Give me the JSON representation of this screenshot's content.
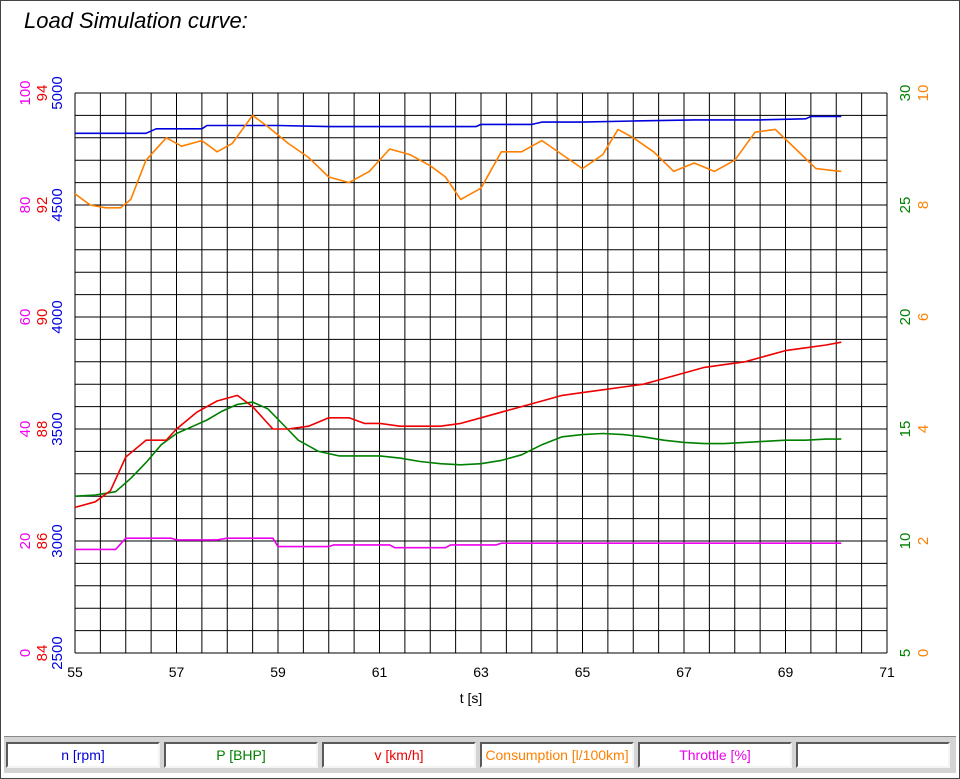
{
  "window": {
    "title": "Load Simulation curve:"
  },
  "legend": [
    {
      "label": "n [rpm]",
      "color": "#0000dd"
    },
    {
      "label": "P [BHP]",
      "color": "#008000"
    },
    {
      "label": "v [km/h]",
      "color": "#ee0000"
    },
    {
      "label": "Consumption [l/100km]",
      "color": "#ff8000"
    },
    {
      "label": "Throttle [%]",
      "color": "#ee00ee"
    },
    {
      "label": ""
    }
  ],
  "chart_data": {
    "type": "line",
    "title": "Load Simulation curve:",
    "xlabel": "t [s]",
    "xlim": [
      55,
      71
    ],
    "x_ticks": [
      55,
      57,
      59,
      61,
      63,
      65,
      67,
      69,
      71
    ],
    "grid": true,
    "legend_placement": "bottom",
    "axes": [
      {
        "id": "rpm",
        "side": "left",
        "color": "#0000dd",
        "min": 2500,
        "max": 5000,
        "ticks": [
          "2500",
          "3000",
          "3500",
          "4000",
          "4500",
          "5000"
        ]
      },
      {
        "id": "v",
        "side": "left",
        "color": "#ee0000",
        "min": 84,
        "max": 94,
        "ticks": [
          "84",
          "86",
          "88",
          "90",
          "92",
          "94"
        ]
      },
      {
        "id": "throttle",
        "side": "left",
        "color": "#ee00ee",
        "min": 0,
        "max": 100,
        "ticks": [
          "0",
          "20",
          "40",
          "60",
          "80",
          "100"
        ]
      },
      {
        "id": "power",
        "side": "right",
        "color": "#008000",
        "min": 5,
        "max": 30,
        "ticks": [
          "5",
          "10",
          "15",
          "20",
          "25",
          "30"
        ]
      },
      {
        "id": "consumption",
        "side": "right",
        "color": "#ff8000",
        "min": 0,
        "max": 10,
        "ticks": [
          "0",
          "2",
          "4",
          "6",
          "8",
          "10"
        ]
      }
    ],
    "series": [
      {
        "name": "n [rpm]",
        "axis": "rpm",
        "color": "#0000dd",
        "x": [
          55,
          55.9,
          56.4,
          56.6,
          57.5,
          57.6,
          58.0,
          59.0,
          60.0,
          61.0,
          62.0,
          62.9,
          63.0,
          64.0,
          64.2,
          65.0,
          66.0,
          67.2,
          67.5,
          68.5,
          69.4,
          69.5,
          70.1
        ],
        "values": [
          4820,
          4820,
          4820,
          4840,
          4840,
          4855,
          4855,
          4855,
          4850,
          4850,
          4850,
          4850,
          4860,
          4860,
          4870,
          4870,
          4875,
          4880,
          4880,
          4880,
          4885,
          4895,
          4895
        ]
      },
      {
        "name": "P [BHP]",
        "axis": "power",
        "color": "#008000",
        "x": [
          55,
          55.4,
          55.8,
          56.1,
          56.4,
          56.7,
          57.0,
          57.3,
          57.6,
          57.9,
          58.2,
          58.5,
          58.8,
          59.1,
          59.4,
          59.8,
          60.2,
          60.6,
          61.0,
          61.4,
          61.8,
          62.2,
          62.6,
          63.0,
          63.4,
          63.8,
          64.2,
          64.6,
          65.0,
          65.4,
          65.8,
          66.2,
          66.6,
          67.0,
          67.4,
          67.8,
          68.2,
          68.6,
          69.0,
          69.4,
          69.8,
          70.1
        ],
        "values": [
          12.0,
          12.05,
          12.2,
          12.8,
          13.5,
          14.3,
          14.8,
          15.1,
          15.4,
          15.8,
          16.1,
          16.2,
          15.9,
          15.2,
          14.5,
          14.0,
          13.8,
          13.8,
          13.8,
          13.7,
          13.55,
          13.45,
          13.4,
          13.45,
          13.6,
          13.85,
          14.3,
          14.65,
          14.75,
          14.8,
          14.75,
          14.65,
          14.5,
          14.4,
          14.35,
          14.35,
          14.4,
          14.45,
          14.5,
          14.5,
          14.55,
          14.55
        ]
      },
      {
        "name": "v [km/h]",
        "axis": "v",
        "color": "#ee0000",
        "x": [
          55,
          55.4,
          55.7,
          56.0,
          56.4,
          56.8,
          57.0,
          57.4,
          57.8,
          58.2,
          58.5,
          58.9,
          59.2,
          59.6,
          60.0,
          60.4,
          60.7,
          61.0,
          61.4,
          61.8,
          62.2,
          62.6,
          63.0,
          63.4,
          63.8,
          64.2,
          64.6,
          65.0,
          65.4,
          65.8,
          66.2,
          66.6,
          67.0,
          67.4,
          67.8,
          68.2,
          68.6,
          69.0,
          69.4,
          69.8,
          70.1
        ],
        "values": [
          86.6,
          86.7,
          86.9,
          87.5,
          87.8,
          87.8,
          88.0,
          88.3,
          88.5,
          88.6,
          88.4,
          88.0,
          88.0,
          88.05,
          88.2,
          88.2,
          88.1,
          88.1,
          88.05,
          88.05,
          88.05,
          88.1,
          88.2,
          88.3,
          88.4,
          88.5,
          88.6,
          88.65,
          88.7,
          88.75,
          88.8,
          88.9,
          89.0,
          89.1,
          89.15,
          89.2,
          89.3,
          89.4,
          89.45,
          89.5,
          89.55
        ]
      },
      {
        "name": "Consumption [l/100km]",
        "axis": "consumption",
        "color": "#ff8000",
        "x": [
          55,
          55.3,
          55.6,
          55.9,
          56.1,
          56.4,
          56.8,
          57.1,
          57.5,
          57.8,
          58.1,
          58.5,
          58.8,
          59.2,
          59.6,
          60.0,
          60.4,
          60.8,
          61.2,
          61.6,
          62.0,
          62.3,
          62.6,
          63.0,
          63.4,
          63.8,
          64.2,
          64.6,
          65.0,
          65.4,
          65.7,
          66.0,
          66.4,
          66.8,
          67.2,
          67.6,
          68.0,
          68.4,
          68.8,
          69.2,
          69.6,
          70.1
        ],
        "values": [
          8.2,
          8.0,
          7.95,
          7.95,
          8.1,
          8.8,
          9.2,
          9.05,
          9.15,
          8.95,
          9.1,
          9.6,
          9.4,
          9.1,
          8.85,
          8.5,
          8.4,
          8.6,
          9.0,
          8.9,
          8.7,
          8.5,
          8.1,
          8.3,
          8.95,
          8.95,
          9.15,
          8.9,
          8.65,
          8.9,
          9.35,
          9.2,
          8.95,
          8.6,
          8.75,
          8.6,
          8.8,
          9.3,
          9.35,
          9.0,
          8.65,
          8.6
        ]
      },
      {
        "name": "Throttle [%]",
        "axis": "throttle",
        "color": "#ee00ee",
        "x": [
          55,
          55.7,
          55.8,
          56.0,
          56.9,
          57.0,
          57.8,
          58.0,
          58.9,
          59.0,
          60.0,
          60.1,
          61.2,
          61.3,
          62.3,
          62.4,
          63.3,
          63.4,
          70.1
        ],
        "values": [
          18.5,
          18.5,
          18.5,
          20.5,
          20.5,
          20.2,
          20.2,
          20.5,
          20.5,
          19.0,
          19.0,
          19.3,
          19.3,
          18.8,
          18.8,
          19.3,
          19.3,
          19.6,
          19.6
        ]
      }
    ]
  }
}
